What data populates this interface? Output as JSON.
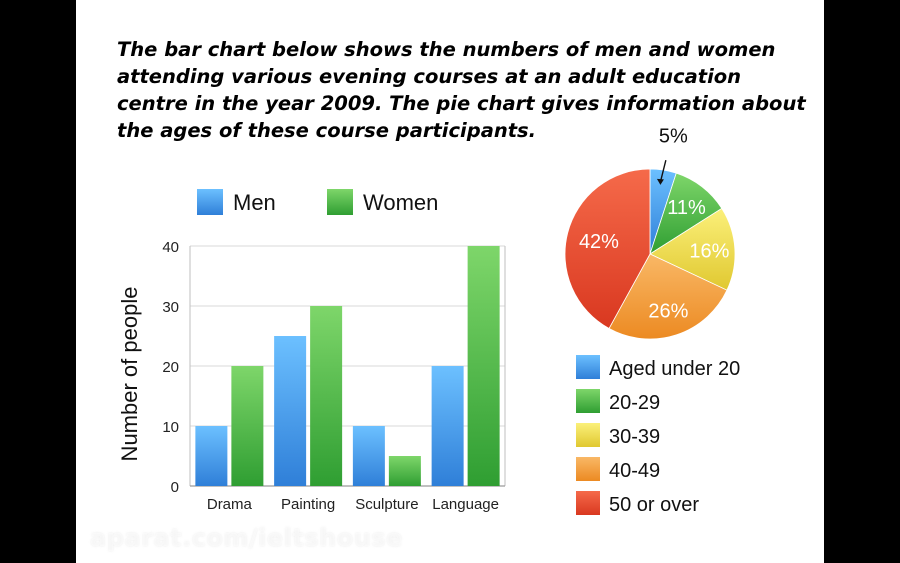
{
  "caption": "The bar chart below shows the numbers of men and women attending various evening courses at an adult education centre in the year 2009. The pie chart gives information about the ages of these course participants.",
  "watermark": "aparat.com/ieltshouse",
  "chart_data": [
    {
      "type": "bar",
      "categories": [
        "Drama",
        "Painting",
        "Sculpture",
        "Language"
      ],
      "series": [
        {
          "name": "Men",
          "values": [
            10,
            25,
            10,
            20
          ],
          "color": "#3a8fe0"
        },
        {
          "name": "Women",
          "values": [
            20,
            30,
            5,
            40
          ],
          "color": "#44b53c"
        }
      ],
      "xlabel": "",
      "ylabel": "Number of people",
      "ylim": [
        0,
        40
      ],
      "yticks": [
        0,
        10,
        20,
        30,
        40
      ],
      "legend_position": "top",
      "grid": true
    },
    {
      "type": "pie",
      "slices": [
        {
          "name": "Aged under 20",
          "value": 5,
          "label": "5%",
          "color": "#3a8fe0"
        },
        {
          "name": "20-29",
          "value": 11,
          "label": "11%",
          "color": "#44b53c"
        },
        {
          "name": "30-39",
          "value": 16,
          "label": "16%",
          "color": "#e6d43a"
        },
        {
          "name": "40-49",
          "value": 26,
          "label": "26%",
          "color": "#f29a2e"
        },
        {
          "name": "50 or over",
          "value": 42,
          "label": "42%",
          "color": "#e8452c"
        }
      ],
      "legend_position": "bottom"
    }
  ]
}
